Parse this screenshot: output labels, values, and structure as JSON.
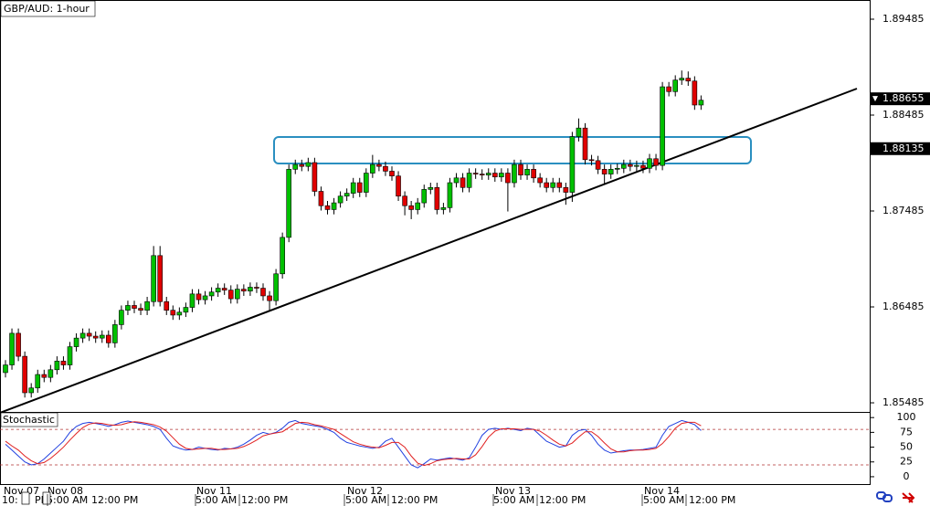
{
  "chart_data": {
    "type": "candlestick",
    "title": "GBP/AUD: 1-hour",
    "ylim": [
      1.8539,
      1.89685
    ],
    "yticks": [
      1.89485,
      1.88485,
      1.87485,
      1.86485,
      1.85485
    ],
    "price_labels": [
      1.88655,
      1.88135
    ],
    "up_color": "#00c000",
    "down_color": "#e00000",
    "open": [
      1.858,
      1.8588,
      1.8621,
      1.8597,
      1.8559,
      1.8564,
      1.8578,
      1.8575,
      1.8583,
      1.8592,
      1.8588,
      1.8607,
      1.8616,
      1.8621,
      1.8618,
      1.8616,
      1.8619,
      1.8611,
      1.863,
      1.8645,
      1.865,
      1.8647,
      1.8645,
      1.8654,
      1.8702,
      1.8654,
      1.8645,
      1.864,
      1.8643,
      1.8648,
      1.8662,
      1.8656,
      1.866,
      1.8664,
      1.8668,
      1.8666,
      1.8657,
      1.8667,
      1.8665,
      1.8669,
      1.8668,
      1.866,
      1.8655,
      1.8683,
      1.8721,
      1.8792,
      1.8797,
      1.8795,
      1.8799,
      1.8769,
      1.8754,
      1.875,
      1.8757,
      1.8764,
      1.8767,
      1.8778,
      1.8768,
      1.8788,
      1.8797,
      1.8795,
      1.879,
      1.8785,
      1.8764,
      1.8754,
      1.875,
      1.8757,
      1.8771,
      1.8773,
      1.875,
      1.8752,
      1.8778,
      1.8783,
      1.8773,
      1.8788,
      1.8787,
      1.8786,
      1.8788,
      1.8784,
      1.8788,
      1.8778,
      1.8797,
      1.8786,
      1.8792,
      1.8783,
      1.8778,
      1.8773,
      1.8778,
      1.8773,
      1.8768,
      1.8826,
      1.8835,
      1.8802,
      1.8801,
      1.8792,
      1.8787,
      1.8792,
      1.8793,
      1.8797,
      1.8795,
      1.8796,
      1.8793,
      1.8803,
      1.8796,
      1.8878,
      1.8873,
      1.8885,
      1.8887,
      1.8884,
      1.8859
    ],
    "high": [
      1.8593,
      1.8626,
      1.8626,
      1.8602,
      1.8569,
      1.8583,
      1.8583,
      1.8588,
      1.8597,
      1.8597,
      1.8612,
      1.8621,
      1.8626,
      1.8626,
      1.8623,
      1.8624,
      1.8624,
      1.8635,
      1.865,
      1.8655,
      1.8655,
      1.8652,
      1.8659,
      1.8712,
      1.8712,
      1.8659,
      1.865,
      1.8648,
      1.8653,
      1.8667,
      1.8667,
      1.8665,
      1.8669,
      1.8673,
      1.8673,
      1.8671,
      1.8672,
      1.8672,
      1.8674,
      1.8674,
      1.8673,
      1.8665,
      1.8688,
      1.8726,
      1.8797,
      1.8802,
      1.8802,
      1.8804,
      1.8804,
      1.8774,
      1.8759,
      1.8762,
      1.8769,
      1.8772,
      1.8783,
      1.8783,
      1.8793,
      1.8807,
      1.8802,
      1.88,
      1.8795,
      1.879,
      1.8769,
      1.8759,
      1.8762,
      1.8776,
      1.8778,
      1.8778,
      1.8757,
      1.8783,
      1.8788,
      1.8788,
      1.8793,
      1.8793,
      1.8792,
      1.8793,
      1.8793,
      1.8793,
      1.8793,
      1.8802,
      1.8802,
      1.8797,
      1.8797,
      1.8788,
      1.8783,
      1.8783,
      1.8783,
      1.8778,
      1.8831,
      1.8845,
      1.884,
      1.8807,
      1.8806,
      1.8797,
      1.8797,
      1.8798,
      1.8802,
      1.8802,
      1.8801,
      1.8801,
      1.8808,
      1.8808,
      1.8883,
      1.8883,
      1.889,
      1.8895,
      1.8894,
      1.8889,
      1.8869
    ],
    "low": [
      1.8575,
      1.8583,
      1.8592,
      1.8554,
      1.8554,
      1.8559,
      1.857,
      1.857,
      1.8578,
      1.8583,
      1.8583,
      1.8602,
      1.8611,
      1.8613,
      1.8611,
      1.8611,
      1.8606,
      1.8606,
      1.8625,
      1.864,
      1.8642,
      1.864,
      1.864,
      1.8649,
      1.8649,
      1.864,
      1.8635,
      1.8635,
      1.8638,
      1.8643,
      1.8651,
      1.8651,
      1.8655,
      1.8659,
      1.8661,
      1.8652,
      1.8652,
      1.866,
      1.866,
      1.8663,
      1.8655,
      1.8645,
      1.865,
      1.8678,
      1.8716,
      1.8787,
      1.879,
      1.879,
      1.8764,
      1.8749,
      1.8745,
      1.8745,
      1.8752,
      1.8759,
      1.8762,
      1.8763,
      1.8763,
      1.8783,
      1.879,
      1.8785,
      1.878,
      1.8759,
      1.8744,
      1.874,
      1.8745,
      1.8752,
      1.8766,
      1.8745,
      1.8745,
      1.8747,
      1.8773,
      1.8768,
      1.8768,
      1.8782,
      1.8781,
      1.8781,
      1.8779,
      1.8779,
      1.8748,
      1.8773,
      1.8781,
      1.8781,
      1.8778,
      1.8773,
      1.8768,
      1.8768,
      1.8768,
      1.8755,
      1.8758,
      1.8821,
      1.8797,
      1.8796,
      1.8787,
      1.8777,
      1.8782,
      1.8787,
      1.8788,
      1.879,
      1.879,
      1.8788,
      1.8788,
      1.8791,
      1.8791,
      1.8868,
      1.8868,
      1.888,
      1.8879,
      1.8854,
      1.8854
    ],
    "close": [
      1.8588,
      1.8621,
      1.8597,
      1.8559,
      1.8564,
      1.8578,
      1.8575,
      1.8583,
      1.8592,
      1.8588,
      1.8607,
      1.8616,
      1.8621,
      1.8618,
      1.8616,
      1.8619,
      1.8611,
      1.863,
      1.8645,
      1.865,
      1.8647,
      1.8645,
      1.8654,
      1.8702,
      1.8654,
      1.8645,
      1.864,
      1.8643,
      1.8648,
      1.8662,
      1.8656,
      1.866,
      1.8664,
      1.8668,
      1.8666,
      1.8657,
      1.8667,
      1.8665,
      1.8669,
      1.8668,
      1.866,
      1.8655,
      1.8683,
      1.8721,
      1.8792,
      1.8797,
      1.8795,
      1.8799,
      1.8769,
      1.8754,
      1.875,
      1.8757,
      1.8764,
      1.8767,
      1.8778,
      1.8768,
      1.8788,
      1.8797,
      1.8795,
      1.879,
      1.8785,
      1.8764,
      1.8754,
      1.875,
      1.8757,
      1.8771,
      1.8773,
      1.875,
      1.8752,
      1.8778,
      1.8783,
      1.8773,
      1.8788,
      1.8787,
      1.8786,
      1.8788,
      1.8784,
      1.8788,
      1.8778,
      1.8797,
      1.8786,
      1.8792,
      1.8783,
      1.8778,
      1.8773,
      1.8778,
      1.8773,
      1.8768,
      1.8826,
      1.8835,
      1.8802,
      1.8801,
      1.8792,
      1.8787,
      1.8792,
      1.8793,
      1.8797,
      1.8795,
      1.8796,
      1.8793,
      1.8803,
      1.8796,
      1.8878,
      1.8873,
      1.8885,
      1.8887,
      1.8884,
      1.8859,
      1.8864
    ],
    "date_labels": [
      "Nov 07",
      "Nov 08",
      "Nov 11",
      "Nov 12",
      "Nov 13",
      "Nov 14"
    ],
    "time_labels": [
      "10:",
      "PM",
      "5:00 AM",
      "12:00 PM",
      "5:00 AM",
      "12:00 PM",
      "5:00 AM",
      "12:00 PM",
      "5:00 AM",
      "12:00 PM",
      "5:00 AM",
      "12:00 PM"
    ],
    "stochastic": {
      "title": "Stochastic",
      "ylim": [
        -14,
        108
      ],
      "yticks": [
        100,
        75,
        50,
        25,
        0
      ],
      "levels": [
        80,
        20
      ],
      "series": [
        {
          "color": "#2040e0",
          "values": [
            55,
            45,
            35,
            25,
            20,
            22,
            30,
            40,
            50,
            60,
            75,
            85,
            90,
            92,
            90,
            88,
            85,
            88,
            92,
            94,
            92,
            90,
            88,
            85,
            80,
            65,
            52,
            48,
            45,
            46,
            50,
            48,
            46,
            45,
            48,
            47,
            50,
            55,
            62,
            70,
            75,
            72,
            75,
            82,
            92,
            95,
            90,
            88,
            86,
            84,
            80,
            75,
            65,
            58,
            55,
            52,
            50,
            48,
            50,
            60,
            65,
            50,
            35,
            20,
            15,
            22,
            30,
            28,
            30,
            32,
            30,
            28,
            32,
            50,
            70,
            80,
            82,
            80,
            82,
            80,
            78,
            82,
            80,
            70,
            60,
            55,
            50,
            52,
            70,
            78,
            80,
            70,
            55,
            45,
            40,
            42,
            44,
            45,
            45,
            46,
            48,
            50,
            70,
            85,
            90,
            95,
            92,
            88,
            78
          ]
        },
        {
          "color": "#e02020",
          "values": [
            60,
            52,
            45,
            35,
            27,
            22,
            24,
            31,
            40,
            50,
            62,
            73,
            83,
            89,
            91,
            90,
            88,
            87,
            88,
            91,
            93,
            92,
            90,
            88,
            84,
            77,
            66,
            55,
            48,
            46,
            47,
            48,
            48,
            46,
            46,
            47,
            48,
            51,
            56,
            62,
            69,
            72,
            74,
            76,
            83,
            90,
            92,
            91,
            88,
            86,
            83,
            80,
            73,
            66,
            59,
            55,
            52,
            50,
            49,
            53,
            58,
            58,
            50,
            35,
            23,
            19,
            22,
            27,
            29,
            30,
            31,
            30,
            30,
            37,
            51,
            67,
            77,
            81,
            81,
            81,
            80,
            80,
            80,
            77,
            70,
            62,
            55,
            52,
            57,
            67,
            76,
            76,
            68,
            57,
            47,
            42,
            42,
            44,
            45,
            45,
            46,
            48,
            56,
            68,
            82,
            90,
            92,
            92,
            86
          ]
        }
      ]
    }
  }
}
